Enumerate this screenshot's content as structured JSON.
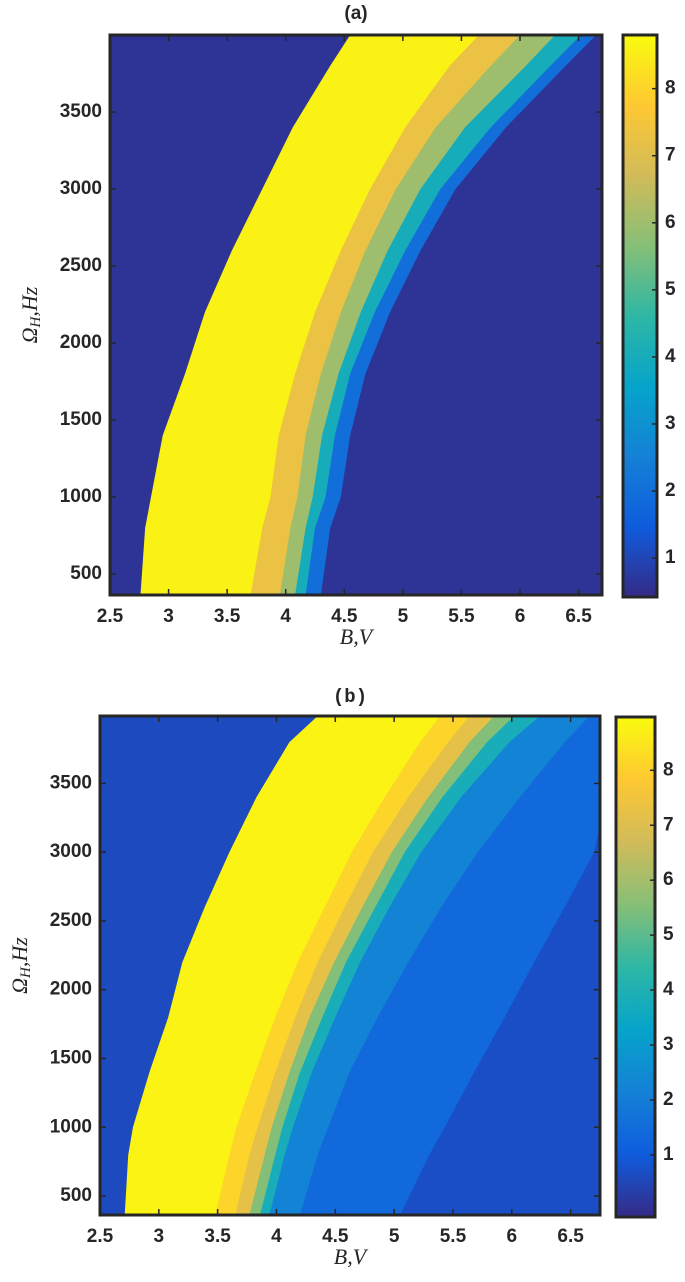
{
  "chart_data": [
    {
      "type": "contour",
      "title": "(a)",
      "xlabel": "B,V",
      "ylabel": [
        "Ω",
        "H",
        ",Hz"
      ],
      "xlim": [
        2.5,
        6.7
      ],
      "ylim": [
        364,
        4000
      ],
      "xticks": [
        2.5,
        3,
        3.5,
        4,
        4.5,
        5,
        5.5,
        6,
        6.5
      ],
      "yticks": [
        500,
        1000,
        1500,
        2000,
        2500,
        3000,
        3500
      ],
      "clim": [
        0.42,
        8.8
      ],
      "cticks": [
        1,
        2,
        3,
        4,
        5,
        6,
        7,
        8
      ],
      "colormap": [
        "#352a87",
        "#0f5cdd",
        "#1481d6",
        "#06a4ca",
        "#2eb7a4",
        "#87bf77",
        "#d1bb59",
        "#fec832",
        "#f9fb0e"
      ],
      "background": 0.6,
      "contour_y": [
        364,
        800,
        1000,
        1400,
        1800,
        2200,
        2600,
        3000,
        3400,
        3800,
        4000
      ],
      "bands": [
        {
          "value": 8.6,
          "x": [
            2.76,
            2.8,
            2.85,
            2.95,
            3.14,
            3.31,
            3.54,
            3.8,
            4.06,
            4.38,
            4.55
          ]
        },
        {
          "value": 7.3,
          "x": [
            3.7,
            3.8,
            3.87,
            3.94,
            4.08,
            4.25,
            4.47,
            4.72,
            5.02,
            5.4,
            5.65
          ]
        },
        {
          "value": 6,
          "x": [
            3.95,
            4.04,
            4.1,
            4.17,
            4.3,
            4.47,
            4.68,
            4.94,
            5.28,
            5.75,
            6.0
          ]
        },
        {
          "value": 4,
          "x": [
            4.08,
            4.17,
            4.23,
            4.31,
            4.45,
            4.64,
            4.87,
            5.15,
            5.53,
            6.05,
            6.3
          ]
        },
        {
          "value": 2,
          "x": [
            4.17,
            4.25,
            4.34,
            4.42,
            4.55,
            4.76,
            5.02,
            5.32,
            5.75,
            6.26,
            6.52
          ]
        },
        {
          "value": 0.6,
          "x": [
            4.3,
            4.38,
            4.47,
            4.55,
            4.68,
            4.89,
            5.15,
            5.45,
            5.88,
            6.39,
            6.65
          ]
        }
      ]
    },
    {
      "type": "contour",
      "title": "(b)",
      "xlabel": "B,V",
      "ylabel": [
        "Ω",
        "H",
        ",Hz"
      ],
      "xlim": [
        2.5,
        6.75
      ],
      "ylim": [
        362,
        3990
      ],
      "xticks": [
        2.5,
        3,
        3.5,
        4,
        4.5,
        5,
        5.5,
        6,
        6.5
      ],
      "yticks": [
        500,
        1000,
        1500,
        2000,
        2500,
        3000,
        3500
      ],
      "clim": [
        -0.13,
        8.97
      ],
      "cticks": [
        1,
        2,
        3,
        4,
        5,
        6,
        7,
        8
      ],
      "colormap": [
        "#352a87",
        "#0f5cdd",
        "#1481d6",
        "#06a4ca",
        "#2eb7a4",
        "#87bf77",
        "#d1bb59",
        "#fec832",
        "#f9fb0e"
      ],
      "background": 0.6,
      "contour_y": [
        362,
        800,
        1000,
        1400,
        1800,
        2200,
        2600,
        3000,
        3400,
        3800,
        3990
      ],
      "bands": [
        {
          "value": 8.8,
          "x": [
            2.71,
            2.74,
            2.78,
            2.92,
            3.08,
            3.2,
            3.39,
            3.6,
            3.83,
            4.11,
            4.35
          ]
        },
        {
          "value": 8.1,
          "x": [
            3.48,
            3.6,
            3.66,
            3.82,
            3.99,
            4.18,
            4.41,
            4.64,
            4.92,
            5.22,
            5.39
          ]
        },
        {
          "value": 7.2,
          "x": [
            3.65,
            3.77,
            3.84,
            3.99,
            4.16,
            4.35,
            4.58,
            4.82,
            5.12,
            5.46,
            5.64
          ]
        },
        {
          "value": 5.5,
          "x": [
            3.77,
            3.9,
            3.96,
            4.11,
            4.28,
            4.49,
            4.73,
            4.98,
            5.29,
            5.64,
            5.85
          ]
        },
        {
          "value": 3.8,
          "x": [
            3.86,
            3.99,
            4.05,
            4.2,
            4.39,
            4.59,
            4.84,
            5.09,
            5.41,
            5.79,
            6.02
          ]
        },
        {
          "value": 2.2,
          "x": [
            3.94,
            4.07,
            4.14,
            4.3,
            4.5,
            4.71,
            4.96,
            5.23,
            5.57,
            5.98,
            6.24
          ]
        },
        {
          "value": 1.4,
          "x": [
            4.2,
            4.35,
            4.44,
            4.62,
            4.86,
            5.12,
            5.4,
            5.71,
            6.07,
            6.45,
            6.66
          ]
        },
        {
          "value": 0.7,
          "x": [
            5.05,
            5.3,
            5.43,
            5.68,
            5.94,
            6.19,
            6.45,
            6.7,
            6.8,
            6.8,
            6.8
          ]
        }
      ]
    }
  ]
}
